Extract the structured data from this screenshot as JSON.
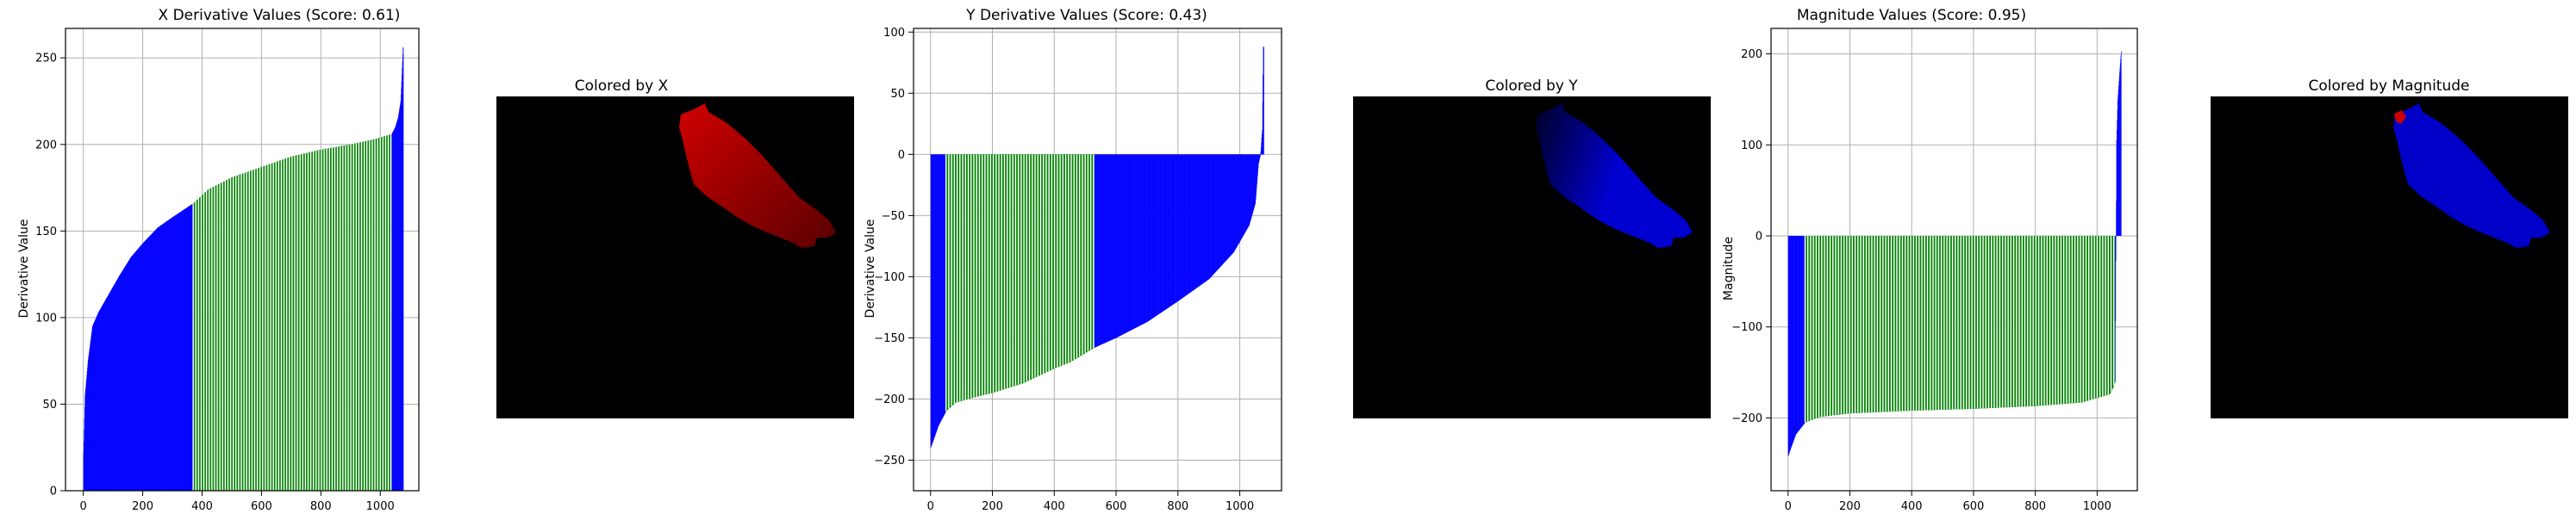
{
  "chart_data": [
    {
      "type": "bar",
      "title": "X Derivative Values (Score: 0.61)",
      "xlabel": "",
      "ylabel": "Derivative Value",
      "xlim": [
        -60,
        1130
      ],
      "ylim": [
        0,
        267
      ],
      "xticks": [
        0,
        200,
        400,
        600,
        800,
        1000
      ],
      "yticks": [
        0,
        50,
        100,
        150,
        200,
        250
      ],
      "grid": true,
      "n": 1078,
      "segments": [
        {
          "color": "#0000ff",
          "x": [
            0,
            370
          ]
        },
        {
          "color": "#008000",
          "x": [
            370,
            1038
          ]
        },
        {
          "color": "#0000ff",
          "x": [
            1038,
            1078
          ]
        }
      ],
      "curve": [
        [
          0,
          22
        ],
        [
          5,
          55
        ],
        [
          15,
          75
        ],
        [
          30,
          95
        ],
        [
          50,
          103
        ],
        [
          80,
          112
        ],
        [
          120,
          124
        ],
        [
          160,
          135
        ],
        [
          200,
          143
        ],
        [
          250,
          152
        ],
        [
          300,
          158
        ],
        [
          370,
          166
        ],
        [
          420,
          174
        ],
        [
          500,
          181
        ],
        [
          600,
          187
        ],
        [
          700,
          193
        ],
        [
          800,
          197
        ],
        [
          900,
          200
        ],
        [
          980,
          203
        ],
        [
          1038,
          206
        ],
        [
          1050,
          210
        ],
        [
          1060,
          216
        ],
        [
          1068,
          225
        ],
        [
          1072,
          240
        ],
        [
          1076,
          256
        ]
      ]
    },
    {
      "type": "bar",
      "title": "Y Derivative Values (Score: 0.43)",
      "xlabel": "",
      "ylabel": "Derivative Value",
      "xlim": [
        -55,
        1135
      ],
      "ylim": [
        -275,
        103
      ],
      "xticks": [
        0,
        200,
        400,
        600,
        800,
        1000
      ],
      "yticks": [
        -250,
        -200,
        -150,
        -100,
        -50,
        0,
        50,
        100
      ],
      "grid": true,
      "n": 1078,
      "segments": [
        {
          "color": "#0000ff",
          "x": [
            0,
            50
          ]
        },
        {
          "color": "#008000",
          "x": [
            50,
            530
          ]
        },
        {
          "color": "#0000ff",
          "x": [
            530,
            1078
          ]
        }
      ],
      "curve": [
        [
          0,
          -240
        ],
        [
          10,
          -233
        ],
        [
          25,
          -222
        ],
        [
          50,
          -210
        ],
        [
          80,
          -203
        ],
        [
          150,
          -198
        ],
        [
          200,
          -195
        ],
        [
          300,
          -187
        ],
        [
          400,
          -175
        ],
        [
          450,
          -170
        ],
        [
          530,
          -158
        ],
        [
          600,
          -150
        ],
        [
          700,
          -137
        ],
        [
          800,
          -120
        ],
        [
          900,
          -102
        ],
        [
          980,
          -80
        ],
        [
          1030,
          -58
        ],
        [
          1050,
          -40
        ],
        [
          1060,
          -8
        ],
        [
          1066,
          -1
        ],
        [
          1068,
          6
        ],
        [
          1070,
          14
        ],
        [
          1072,
          20
        ],
        [
          1075,
          88
        ]
      ]
    },
    {
      "type": "bar",
      "title": "Magnitude Values (Score: 0.95)",
      "xlabel": "",
      "ylabel": "Magnitude",
      "xlim": [
        -55,
        1130
      ],
      "ylim": [
        -280,
        228
      ],
      "xticks": [
        0,
        200,
        400,
        600,
        800,
        1000
      ],
      "yticks": [
        -200,
        -100,
        0,
        100,
        200
      ],
      "grid": true,
      "n": 1078,
      "segments": [
        {
          "color": "#0000ff",
          "x": [
            0,
            55
          ]
        },
        {
          "color": "#008000",
          "x": [
            55,
            1058
          ]
        },
        {
          "color": "#0000ff",
          "x": [
            1058,
            1078
          ]
        }
      ],
      "curve": [
        [
          0,
          -242
        ],
        [
          10,
          -232
        ],
        [
          25,
          -218
        ],
        [
          55,
          -205
        ],
        [
          100,
          -199
        ],
        [
          200,
          -195
        ],
        [
          400,
          -192
        ],
        [
          600,
          -190
        ],
        [
          800,
          -187
        ],
        [
          950,
          -183
        ],
        [
          1040,
          -174
        ],
        [
          1055,
          -164
        ],
        [
          1058,
          -160
        ],
        [
          1062,
          105
        ],
        [
          1066,
          150
        ],
        [
          1070,
          170
        ],
        [
          1074,
          190
        ],
        [
          1077,
          203
        ]
      ]
    }
  ],
  "images": [
    {
      "title": "Colored by X",
      "fill": "#d00000",
      "shade": "#5a0000",
      "background": "#000000"
    },
    {
      "title": "Colored by Y",
      "fill": "#0000d0",
      "shade": "#000025",
      "background": "#000000"
    },
    {
      "title": "Colored by Magnitude",
      "fill": "#0000c8",
      "accent": "#cc0000",
      "background": "#000000"
    }
  ]
}
